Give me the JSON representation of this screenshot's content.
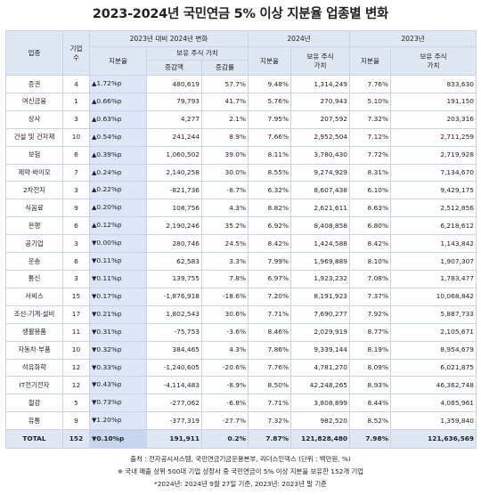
{
  "title": "2023-2024년 국민연금 5% 이상 지분율 업종별 변화",
  "headers": {
    "industry": "업종",
    "count": "기업\n수",
    "change_group": "2023년 대비 2024년 변화",
    "y2024": "2024년",
    "y2023": "2023년",
    "ratio": "지분율",
    "holding_value": "보유 주식 가치",
    "holding_value_wrap": "보유 주식\n가치",
    "increase_amount": "증감액",
    "increase_rate": "증감률"
  },
  "rows": [
    {
      "industry": "증권",
      "count": "4",
      "dir": "▲",
      "change": "1.72%p",
      "amount": "480,619",
      "rate": "57.7%",
      "r2024": "9.48%",
      "v2024": "1,314,249",
      "r2023": "7.76%",
      "v2023": "833,630"
    },
    {
      "industry": "여신금융",
      "count": "1",
      "dir": "▲",
      "change": "0.66%p",
      "amount": "79,793",
      "rate": "41.7%",
      "r2024": "5.76%",
      "v2024": "270,943",
      "r2023": "5.10%",
      "v2023": "191,150"
    },
    {
      "industry": "상사",
      "count": "3",
      "dir": "▲",
      "change": "0.63%p",
      "amount": "4,277",
      "rate": "2.1%",
      "r2024": "7.95%",
      "v2024": "207,592",
      "r2023": "7.32%",
      "v2023": "203,316"
    },
    {
      "industry": "건설 및 건자재",
      "count": "10",
      "dir": "▲",
      "change": "0.54%p",
      "amount": "241,244",
      "rate": "8.9%",
      "r2024": "7.66%",
      "v2024": "2,952,504",
      "r2023": "7.12%",
      "v2023": "2,711,259"
    },
    {
      "industry": "보험",
      "count": "6",
      "dir": "▲",
      "change": "0.39%p",
      "amount": "1,060,502",
      "rate": "39.0%",
      "r2024": "8.11%",
      "v2024": "3,780,430",
      "r2023": "7.72%",
      "v2023": "2,719,928"
    },
    {
      "industry": "제약·바이오",
      "count": "7",
      "dir": "▲",
      "change": "0.24%p",
      "amount": "2,140,258",
      "rate": "30.0%",
      "r2024": "8.55%",
      "v2024": "9,274,929",
      "r2023": "8.31%",
      "v2023": "7,134,670"
    },
    {
      "industry": "2차전지",
      "count": "3",
      "dir": "▲",
      "change": "0.22%p",
      "amount": "-821,736",
      "rate": "-8.7%",
      "r2024": "6.32%",
      "v2024": "8,607,438",
      "r2023": "6.10%",
      "v2023": "9,429,175"
    },
    {
      "industry": "식음료",
      "count": "9",
      "dir": "▲",
      "change": "0.20%p",
      "amount": "108,756",
      "rate": "4.3%",
      "r2024": "8.82%",
      "v2024": "2,621,611",
      "r2023": "8.63%",
      "v2023": "2,512,856"
    },
    {
      "industry": "은행",
      "count": "6",
      "dir": "▲",
      "change": "0.12%p",
      "amount": "2,190,246",
      "rate": "35.2%",
      "r2024": "6.92%",
      "v2024": "8,408,858",
      "r2023": "6.80%",
      "v2023": "6,218,612"
    },
    {
      "industry": "공기업",
      "count": "3",
      "dir": "▼",
      "change": "0.00%p",
      "amount": "280,746",
      "rate": "24.5%",
      "r2024": "8.42%",
      "v2024": "1,424,588",
      "r2023": "8.42%",
      "v2023": "1,143,842"
    },
    {
      "industry": "운송",
      "count": "6",
      "dir": "▼",
      "change": "0.11%p",
      "amount": "62,583",
      "rate": "3.3%",
      "r2024": "7.99%",
      "v2024": "1,969,889",
      "r2023": "8.10%",
      "v2023": "1,907,307"
    },
    {
      "industry": "통신",
      "count": "3",
      "dir": "▼",
      "change": "0.11%p",
      "amount": "139,755",
      "rate": "7.8%",
      "r2024": "6.97%",
      "v2024": "1,923,232",
      "r2023": "7.08%",
      "v2023": "1,783,477"
    },
    {
      "industry": "서비스",
      "count": "15",
      "dir": "▼",
      "change": "0.17%p",
      "amount": "-1,876,918",
      "rate": "-18.6%",
      "r2024": "7.20%",
      "v2024": "8,191,923",
      "r2023": "7.37%",
      "v2023": "10,068,842"
    },
    {
      "industry": "조선·기계·설비",
      "count": "17",
      "dir": "▼",
      "change": "0.21%p",
      "amount": "1,802,543",
      "rate": "30.6%",
      "r2024": "7.71%",
      "v2024": "7,690,277",
      "r2023": "7.92%",
      "v2023": "5,887,733"
    },
    {
      "industry": "생활용품",
      "count": "11",
      "dir": "▼",
      "change": "0.31%p",
      "amount": "-75,753",
      "rate": "-3.6%",
      "r2024": "8.46%",
      "v2024": "2,029,919",
      "r2023": "8.77%",
      "v2023": "2,105,671"
    },
    {
      "industry": "자동차·부품",
      "count": "10",
      "dir": "▼",
      "change": "0.32%p",
      "amount": "384,465",
      "rate": "4.3%",
      "r2024": "7.86%",
      "v2024": "9,339,144",
      "r2023": "8.19%",
      "v2023": "8,954,679"
    },
    {
      "industry": "석유화학",
      "count": "12",
      "dir": "▼",
      "change": "0.33%p",
      "amount": "-1,240,605",
      "rate": "-20.6%",
      "r2024": "7.76%",
      "v2024": "4,781,270",
      "r2023": "8.09%",
      "v2023": "6,021,875"
    },
    {
      "industry": "IT전기전자",
      "count": "12",
      "dir": "▼",
      "change": "0.43%p",
      "amount": "-4,114,483",
      "rate": "-8.9%",
      "r2024": "8.50%",
      "v2024": "42,248,265",
      "r2023": "8.93%",
      "v2023": "46,362,748"
    },
    {
      "industry": "철강",
      "count": "5",
      "dir": "▼",
      "change": "0.73%p",
      "amount": "-277,062",
      "rate": "-6.8%",
      "r2024": "7.71%",
      "v2024": "3,808,899",
      "r2023": "8.44%",
      "v2023": "4,085,961"
    },
    {
      "industry": "유통",
      "count": "9",
      "dir": "▼",
      "change": "1.20%p",
      "amount": "-377,319",
      "rate": "-27.7%",
      "r2024": "7.32%",
      "v2024": "982,520",
      "r2023": "8.52%",
      "v2023": "1,359,840"
    }
  ],
  "total": {
    "industry": "TOTAL",
    "count": "152",
    "dir": "▼",
    "change": "0.10%p",
    "amount": "191,911",
    "rate": "0.2%",
    "r2024": "7.87%",
    "v2024": "121,828,480",
    "r2023": "7.98%",
    "v2023": "121,636,569"
  },
  "notes": [
    "출처 : 전자공시시스템, 국민연금기금운용본부, 리더스인덱스 (단위 : 백만원, %)",
    "※ 국내 매출 상위 500대 기업 상장사 중 국민연금이 5% 이상 지분을 보유한 152개 기업",
    "*2024년: 2024년 9월 27일 기준, 2023년: 2023년 말 기준"
  ],
  "colors": {
    "header_bg": "#dfe7f3",
    "change_col_bg": "#dde6f6",
    "border": "#c9d3e3"
  }
}
